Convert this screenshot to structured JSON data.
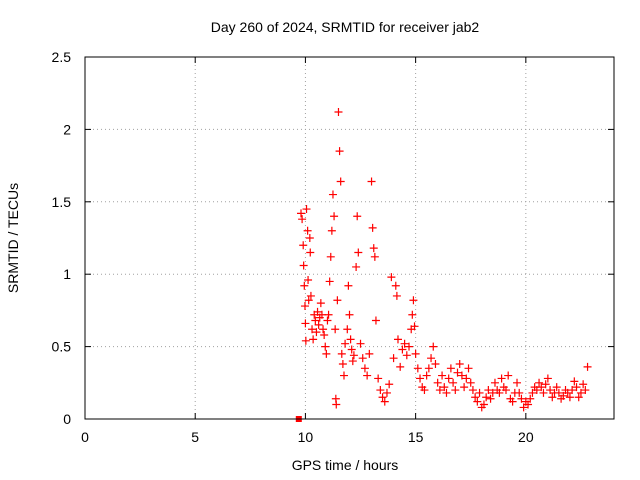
{
  "chart_data": {
    "type": "scatter",
    "title": "Day 260 of 2024, SRMTID for receiver jab2",
    "xlabel": "GPS time / hours",
    "ylabel": "SRMTID / TECUs",
    "xlim": [
      0,
      24
    ],
    "ylim": [
      0,
      2.5
    ],
    "xticks": [
      0,
      5,
      10,
      15,
      20
    ],
    "yticks": [
      0,
      0.5,
      1,
      1.5,
      2,
      2.5
    ],
    "xtick_labels": [
      "0",
      "5",
      "10",
      "15",
      "20"
    ],
    "ytick_labels": [
      "0",
      "0.5",
      "1",
      "1.5",
      "2",
      "2.5"
    ],
    "grid": true,
    "marker": "+",
    "color": "#ff0000",
    "series": [
      {
        "name": "SRMTID",
        "square_marker": {
          "x": 9.7,
          "y": 0.0
        },
        "points": [
          [
            9.8,
            1.42
          ],
          [
            9.85,
            1.38
          ],
          [
            9.9,
            1.2
          ],
          [
            9.92,
            1.06
          ],
          [
            9.95,
            0.92
          ],
          [
            9.98,
            0.78
          ],
          [
            10.0,
            0.66
          ],
          [
            10.02,
            0.54
          ],
          [
            10.05,
            1.45
          ],
          [
            10.1,
            1.3
          ],
          [
            10.12,
            0.96
          ],
          [
            10.15,
            0.82
          ],
          [
            10.2,
            1.25
          ],
          [
            10.22,
            1.15
          ],
          [
            10.25,
            0.85
          ],
          [
            10.3,
            0.62
          ],
          [
            10.35,
            0.55
          ],
          [
            10.4,
            0.72
          ],
          [
            10.45,
            0.68
          ],
          [
            10.5,
            0.6
          ],
          [
            10.55,
            0.74
          ],
          [
            10.6,
            0.65
          ],
          [
            10.65,
            0.7
          ],
          [
            10.7,
            0.8
          ],
          [
            10.75,
            0.72
          ],
          [
            10.8,
            0.62
          ],
          [
            10.85,
            0.58
          ],
          [
            10.9,
            0.5
          ],
          [
            10.95,
            0.45
          ],
          [
            11.0,
            0.68
          ],
          [
            11.05,
            0.72
          ],
          [
            11.1,
            0.95
          ],
          [
            11.15,
            1.12
          ],
          [
            11.2,
            1.3
          ],
          [
            11.25,
            1.55
          ],
          [
            11.3,
            1.4
          ],
          [
            11.35,
            0.62
          ],
          [
            11.38,
            0.14
          ],
          [
            11.4,
            0.1
          ],
          [
            11.45,
            0.82
          ],
          [
            11.5,
            2.12
          ],
          [
            11.55,
            1.85
          ],
          [
            11.6,
            1.64
          ],
          [
            11.65,
            0.45
          ],
          [
            11.7,
            0.38
          ],
          [
            11.75,
            0.3
          ],
          [
            11.8,
            0.52
          ],
          [
            11.9,
            0.62
          ],
          [
            11.95,
            0.92
          ],
          [
            12.0,
            0.72
          ],
          [
            12.05,
            0.55
          ],
          [
            12.1,
            0.48
          ],
          [
            12.15,
            0.4
          ],
          [
            12.2,
            0.44
          ],
          [
            12.3,
            1.05
          ],
          [
            12.35,
            1.4
          ],
          [
            12.4,
            1.15
          ],
          [
            12.5,
            0.52
          ],
          [
            12.6,
            0.42
          ],
          [
            12.7,
            0.35
          ],
          [
            12.8,
            0.3
          ],
          [
            12.9,
            0.45
          ],
          [
            13.0,
            1.64
          ],
          [
            13.05,
            1.32
          ],
          [
            13.1,
            1.18
          ],
          [
            13.15,
            1.12
          ],
          [
            13.2,
            0.68
          ],
          [
            13.3,
            0.28
          ],
          [
            13.4,
            0.2
          ],
          [
            13.5,
            0.15
          ],
          [
            13.6,
            0.12
          ],
          [
            13.7,
            0.18
          ],
          [
            13.8,
            0.24
          ],
          [
            13.9,
            0.98
          ],
          [
            14.0,
            0.42
          ],
          [
            14.1,
            0.92
          ],
          [
            14.15,
            0.85
          ],
          [
            14.2,
            0.55
          ],
          [
            14.3,
            0.36
          ],
          [
            14.4,
            0.48
          ],
          [
            14.5,
            0.52
          ],
          [
            14.6,
            0.44
          ],
          [
            14.7,
            0.5
          ],
          [
            14.8,
            0.62
          ],
          [
            14.85,
            0.72
          ],
          [
            14.9,
            0.82
          ],
          [
            14.95,
            0.64
          ],
          [
            15.0,
            0.45
          ],
          [
            15.1,
            0.35
          ],
          [
            15.2,
            0.28
          ],
          [
            15.3,
            0.22
          ],
          [
            15.4,
            0.2
          ],
          [
            15.5,
            0.3
          ],
          [
            15.6,
            0.35
          ],
          [
            15.7,
            0.42
          ],
          [
            15.8,
            0.5
          ],
          [
            15.9,
            0.38
          ],
          [
            16.0,
            0.25
          ],
          [
            16.1,
            0.2
          ],
          [
            16.2,
            0.3
          ],
          [
            16.3,
            0.22
          ],
          [
            16.4,
            0.18
          ],
          [
            16.5,
            0.28
          ],
          [
            16.6,
            0.35
          ],
          [
            16.7,
            0.25
          ],
          [
            16.8,
            0.2
          ],
          [
            16.9,
            0.32
          ],
          [
            17.0,
            0.38
          ],
          [
            17.1,
            0.3
          ],
          [
            17.2,
            0.22
          ],
          [
            17.3,
            0.28
          ],
          [
            17.4,
            0.35
          ],
          [
            17.5,
            0.25
          ],
          [
            17.6,
            0.2
          ],
          [
            17.7,
            0.15
          ],
          [
            17.8,
            0.12
          ],
          [
            17.9,
            0.18
          ],
          [
            18.0,
            0.08
          ],
          [
            18.1,
            0.1
          ],
          [
            18.2,
            0.15
          ],
          [
            18.3,
            0.2
          ],
          [
            18.4,
            0.14
          ],
          [
            18.5,
            0.18
          ],
          [
            18.6,
            0.25
          ],
          [
            18.7,
            0.2
          ],
          [
            18.8,
            0.18
          ],
          [
            18.9,
            0.28
          ],
          [
            19.0,
            0.22
          ],
          [
            19.1,
            0.2
          ],
          [
            19.2,
            0.3
          ],
          [
            19.3,
            0.14
          ],
          [
            19.4,
            0.12
          ],
          [
            19.5,
            0.18
          ],
          [
            19.6,
            0.25
          ],
          [
            19.7,
            0.18
          ],
          [
            19.8,
            0.14
          ],
          [
            19.9,
            0.08
          ],
          [
            20.0,
            0.12
          ],
          [
            20.1,
            0.1
          ],
          [
            20.2,
            0.14
          ],
          [
            20.3,
            0.18
          ],
          [
            20.4,
            0.22
          ],
          [
            20.5,
            0.2
          ],
          [
            20.6,
            0.25
          ],
          [
            20.7,
            0.22
          ],
          [
            20.8,
            0.18
          ],
          [
            20.9,
            0.24
          ],
          [
            21.0,
            0.28
          ],
          [
            21.1,
            0.2
          ],
          [
            21.2,
            0.15
          ],
          [
            21.3,
            0.18
          ],
          [
            21.4,
            0.22
          ],
          [
            21.5,
            0.18
          ],
          [
            21.6,
            0.14
          ],
          [
            21.7,
            0.16
          ],
          [
            21.8,
            0.2
          ],
          [
            21.9,
            0.18
          ],
          [
            22.0,
            0.15
          ],
          [
            22.1,
            0.2
          ],
          [
            22.2,
            0.26
          ],
          [
            22.3,
            0.22
          ],
          [
            22.4,
            0.15
          ],
          [
            22.5,
            0.18
          ],
          [
            22.6,
            0.24
          ],
          [
            22.7,
            0.2
          ],
          [
            22.8,
            0.36
          ]
        ]
      }
    ]
  }
}
